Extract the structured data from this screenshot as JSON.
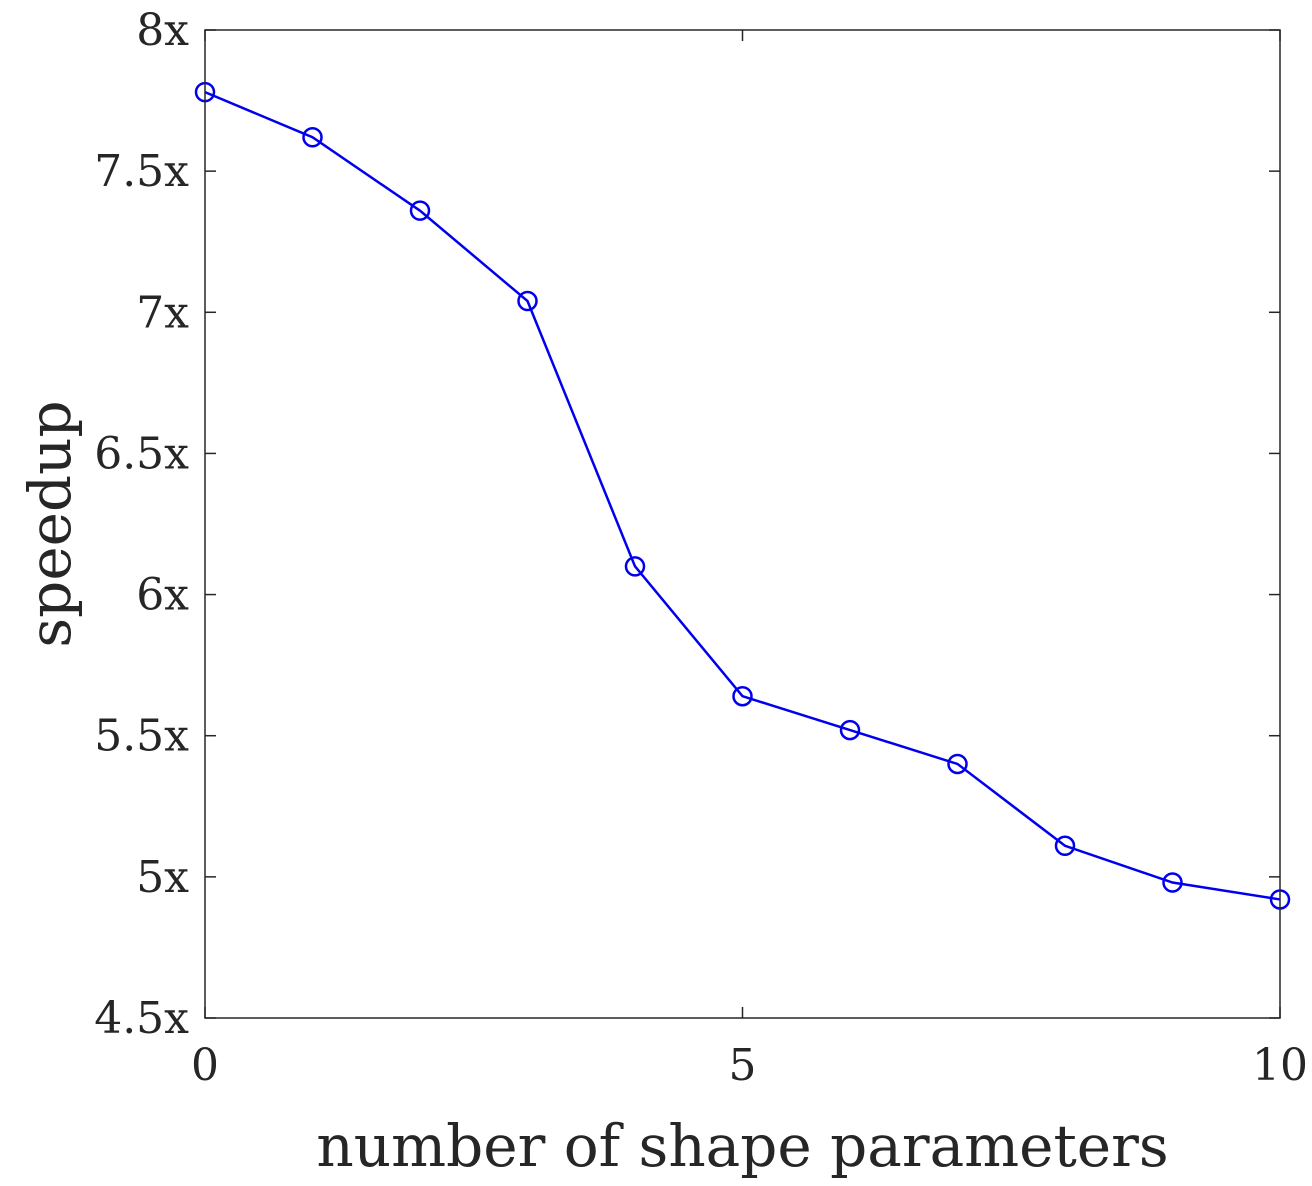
{
  "chart_data": {
    "type": "line",
    "title": "",
    "xlabel": "number of shape parameters",
    "ylabel": "speedup",
    "xlim": [
      0,
      10
    ],
    "ylim": [
      4.5,
      8
    ],
    "x_ticks": [
      0,
      5,
      10
    ],
    "x_tick_labels": [
      "0",
      "5",
      "10"
    ],
    "y_ticks": [
      4.5,
      5,
      5.5,
      6,
      6.5,
      7,
      7.5,
      8
    ],
    "y_tick_labels": [
      "4.5x",
      "5x",
      "5.5x",
      "6x",
      "6.5x",
      "7x",
      "7.5x",
      "8x"
    ],
    "grid": false,
    "series": [
      {
        "color": "#0000ee",
        "marker": "circle",
        "x": [
          0,
          1,
          2,
          3,
          4,
          5,
          6,
          7,
          8,
          9,
          10
        ],
        "y": [
          7.78,
          7.62,
          7.36,
          7.04,
          6.1,
          5.64,
          5.52,
          5.4,
          5.11,
          4.98,
          4.92
        ]
      }
    ]
  }
}
